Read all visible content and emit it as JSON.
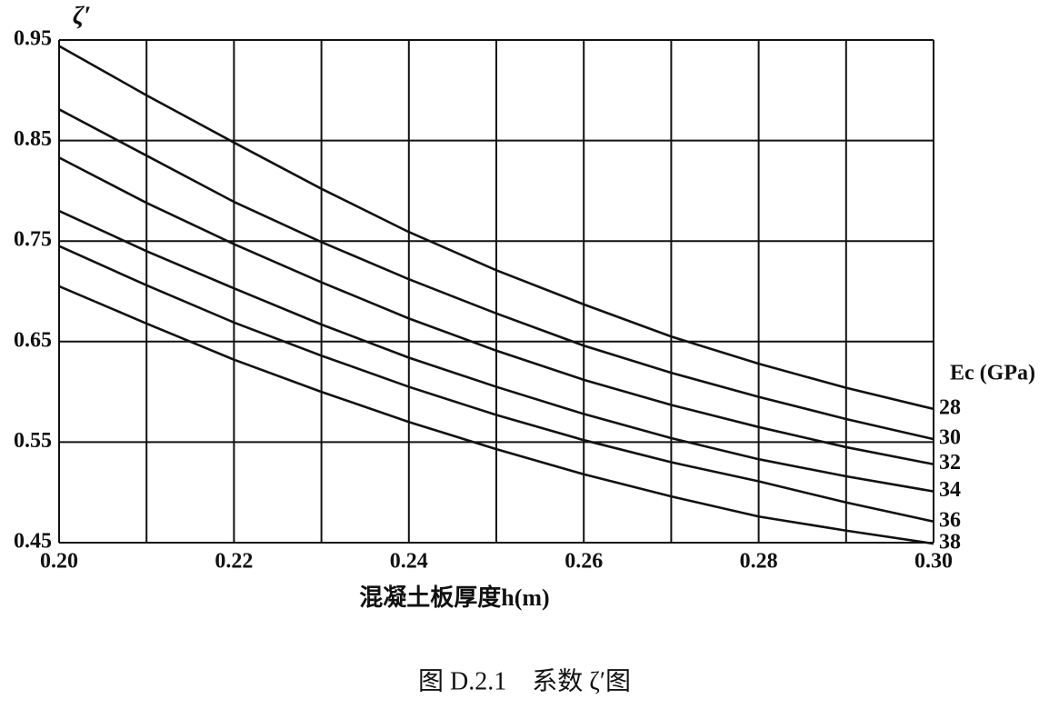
{
  "chart_data": {
    "type": "line",
    "y_label": "ζ′",
    "x_label": "混凝土板厚度h(m)",
    "legend_title": "Ec (GPa)",
    "caption": "图 D.2.1　系数 ζ′图",
    "x": [
      0.2,
      0.21,
      0.22,
      0.23,
      0.24,
      0.25,
      0.26,
      0.27,
      0.28,
      0.29,
      0.3
    ],
    "series": [
      {
        "name": "28",
        "color": "#111111",
        "values": [
          0.944,
          0.895,
          0.848,
          0.802,
          0.759,
          0.721,
          0.687,
          0.655,
          0.628,
          0.604,
          0.583
        ]
      },
      {
        "name": "30",
        "color": "#111111",
        "values": [
          0.881,
          0.835,
          0.789,
          0.749,
          0.712,
          0.678,
          0.646,
          0.619,
          0.595,
          0.573,
          0.553
        ]
      },
      {
        "name": "32",
        "color": "#111111",
        "values": [
          0.833,
          0.788,
          0.747,
          0.709,
          0.673,
          0.641,
          0.612,
          0.587,
          0.565,
          0.545,
          0.528
        ]
      },
      {
        "name": "34",
        "color": "#111111",
        "values": [
          0.78,
          0.74,
          0.703,
          0.667,
          0.634,
          0.605,
          0.578,
          0.554,
          0.533,
          0.516,
          0.501
        ]
      },
      {
        "name": "36",
        "color": "#111111",
        "values": [
          0.745,
          0.706,
          0.669,
          0.636,
          0.605,
          0.577,
          0.552,
          0.53,
          0.511,
          0.49,
          0.471
        ]
      },
      {
        "name": "38",
        "color": "#111111",
        "values": [
          0.705,
          0.668,
          0.632,
          0.6,
          0.57,
          0.543,
          0.518,
          0.496,
          0.476,
          0.462,
          0.449
        ]
      }
    ],
    "xlim": [
      0.2,
      0.3
    ],
    "xticks": [
      {
        "value": 0.2,
        "label": "0.20"
      },
      0.22,
      0.24,
      0.26,
      0.28,
      {
        "value": 0.3,
        "label": "0.30"
      }
    ],
    "ylim": [
      0.45,
      0.95
    ],
    "yticks": [
      0.45,
      0.55,
      0.65,
      0.75,
      0.85,
      0.95
    ],
    "grid": true
  }
}
